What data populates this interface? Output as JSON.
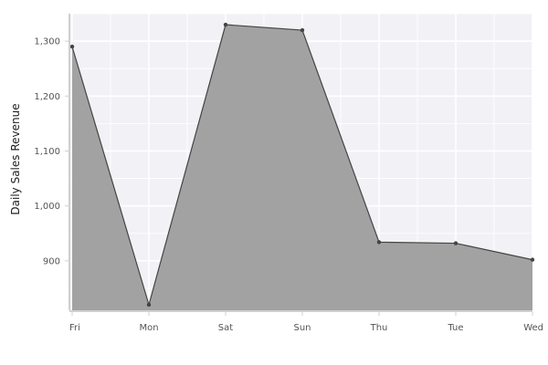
{
  "chart_data": {
    "type": "area",
    "title": "",
    "xlabel": "",
    "ylabel": "Daily Sales Revenue",
    "categories": [
      "Fri",
      "Mon",
      "Sat",
      "Sun",
      "Thu",
      "Tue",
      "Wed"
    ],
    "series": [
      {
        "values": [
          1290,
          820,
          1330,
          1320,
          934,
          932,
          902
        ]
      }
    ],
    "ylim": [
      810,
      1350
    ],
    "y_ticks": [
      900,
      1000,
      1100,
      1200,
      1300
    ],
    "y_tick_labels": [
      "900",
      "1,000",
      "1,100",
      "1,200",
      "1,300"
    ],
    "grid": true,
    "legend": "none",
    "colors": {
      "plot_background": "#f2f2f6",
      "grid": "#ffffff",
      "area_fill": "#a2a2a2",
      "line": "#444444",
      "marker": "#444444",
      "axis": "#d0d0d0"
    }
  }
}
